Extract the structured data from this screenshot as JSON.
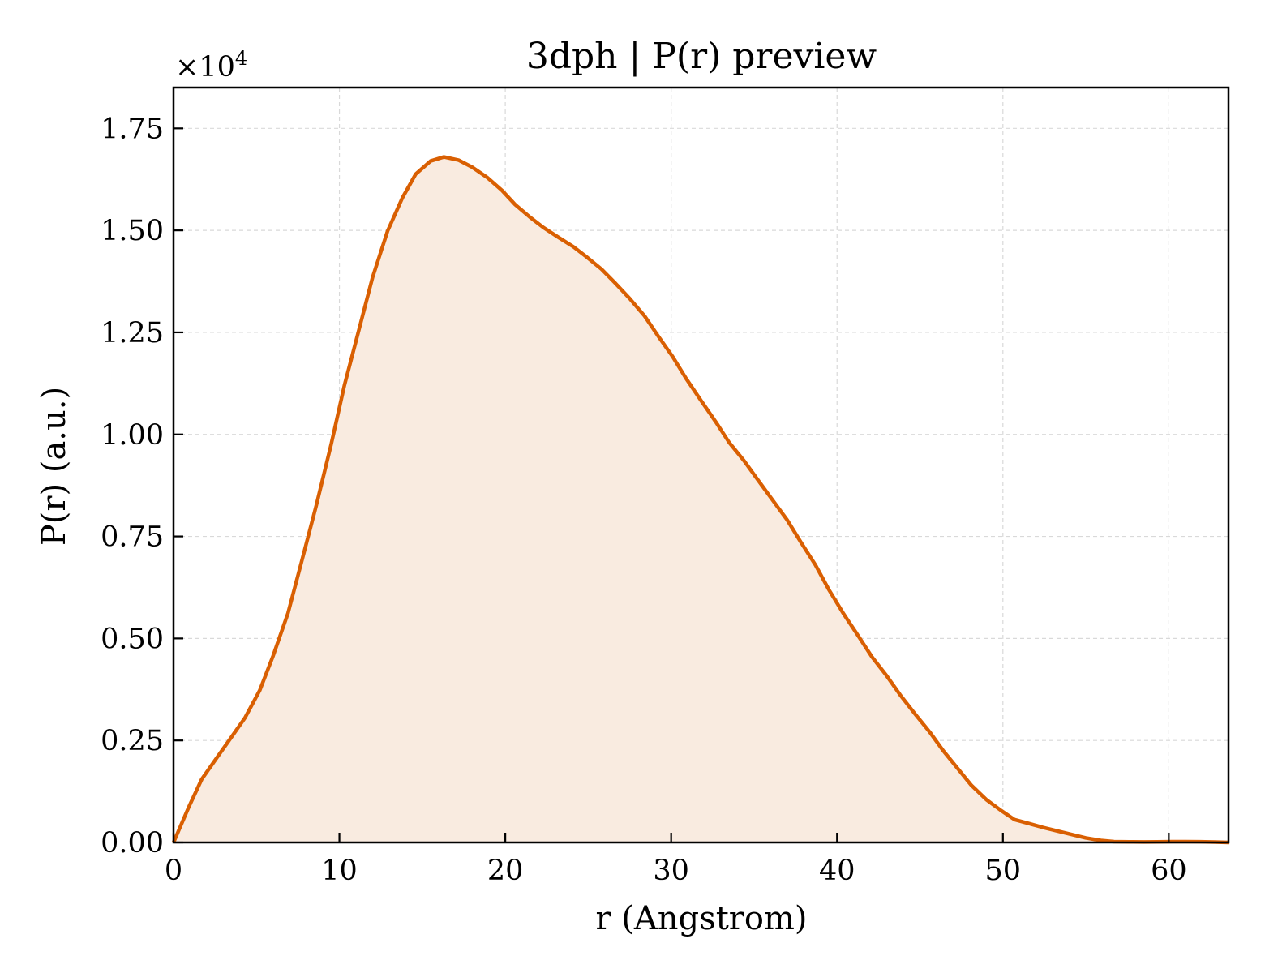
{
  "chart_data": {
    "type": "area",
    "title": "3dph | P(r) preview",
    "xlabel": "r (Angstrom)",
    "ylabel": "P(r) (a.u.)",
    "y_offset_label": "×10",
    "y_offset_exponent": "4",
    "xlim": [
      0,
      63.6
    ],
    "ylim": [
      0,
      1.85
    ],
    "x_ticks": [
      0,
      10,
      20,
      30,
      40,
      50,
      60
    ],
    "x_tick_labels": [
      "0",
      "10",
      "20",
      "30",
      "40",
      "50",
      "60"
    ],
    "y_ticks": [
      0,
      0.25,
      0.5,
      0.75,
      1.0,
      1.25,
      1.5,
      1.75
    ],
    "y_tick_labels": [
      "0.00",
      "0.25",
      "0.50",
      "0.75",
      "1.00",
      "1.25",
      "1.50",
      "1.75"
    ],
    "grid": true,
    "line_color": "#d95f02",
    "fill_color": "#f9ebe0",
    "series": [
      {
        "x": [
          0,
          0.9,
          1.7,
          2.6,
          3.4,
          4.3,
          5.2,
          6.0,
          6.9,
          7.7,
          8.6,
          9.5,
          10.3,
          11.2,
          12.0,
          12.9,
          13.8,
          14.6,
          15.5,
          16.3,
          17.2,
          18.0,
          18.9,
          19.8,
          20.6,
          21.5,
          22.3,
          23.2,
          24.1,
          24.9,
          25.8,
          26.6,
          27.5,
          28.4,
          29.2,
          30.1,
          30.9,
          31.8,
          32.7,
          33.5,
          34.4,
          35.2,
          36.1,
          37.0,
          37.8,
          38.7,
          39.5,
          40.4,
          41.3,
          42.1,
          43.0,
          43.8,
          44.7,
          45.6,
          46.4,
          47.3,
          48.1,
          49.0,
          49.9,
          50.7,
          51.6,
          52.4,
          53.3,
          54.2,
          55.0,
          55.9,
          56.7,
          57.6,
          58.5,
          59.3,
          60.2,
          61.0,
          61.9,
          62.8,
          63.6
        ],
        "y": [
          0,
          0.085,
          0.155,
          0.207,
          0.253,
          0.305,
          0.373,
          0.457,
          0.562,
          0.685,
          0.825,
          0.975,
          1.12,
          1.26,
          1.385,
          1.498,
          1.58,
          1.638,
          1.67,
          1.68,
          1.672,
          1.655,
          1.63,
          1.598,
          1.563,
          1.532,
          1.507,
          1.483,
          1.46,
          1.435,
          1.405,
          1.372,
          1.333,
          1.29,
          1.242,
          1.19,
          1.137,
          1.083,
          1.03,
          0.98,
          0.935,
          0.89,
          0.84,
          0.79,
          0.737,
          0.68,
          0.62,
          0.56,
          0.505,
          0.455,
          0.408,
          0.362,
          0.315,
          0.27,
          0.225,
          0.18,
          0.14,
          0.105,
          0.078,
          0.056,
          0.046,
          0.037,
          0.028,
          0.019,
          0.011,
          0.005,
          0.002,
          0.0015,
          0.0012,
          0.0015,
          0.002,
          0.002,
          0.0018,
          0.001,
          0
        ]
      }
    ]
  }
}
